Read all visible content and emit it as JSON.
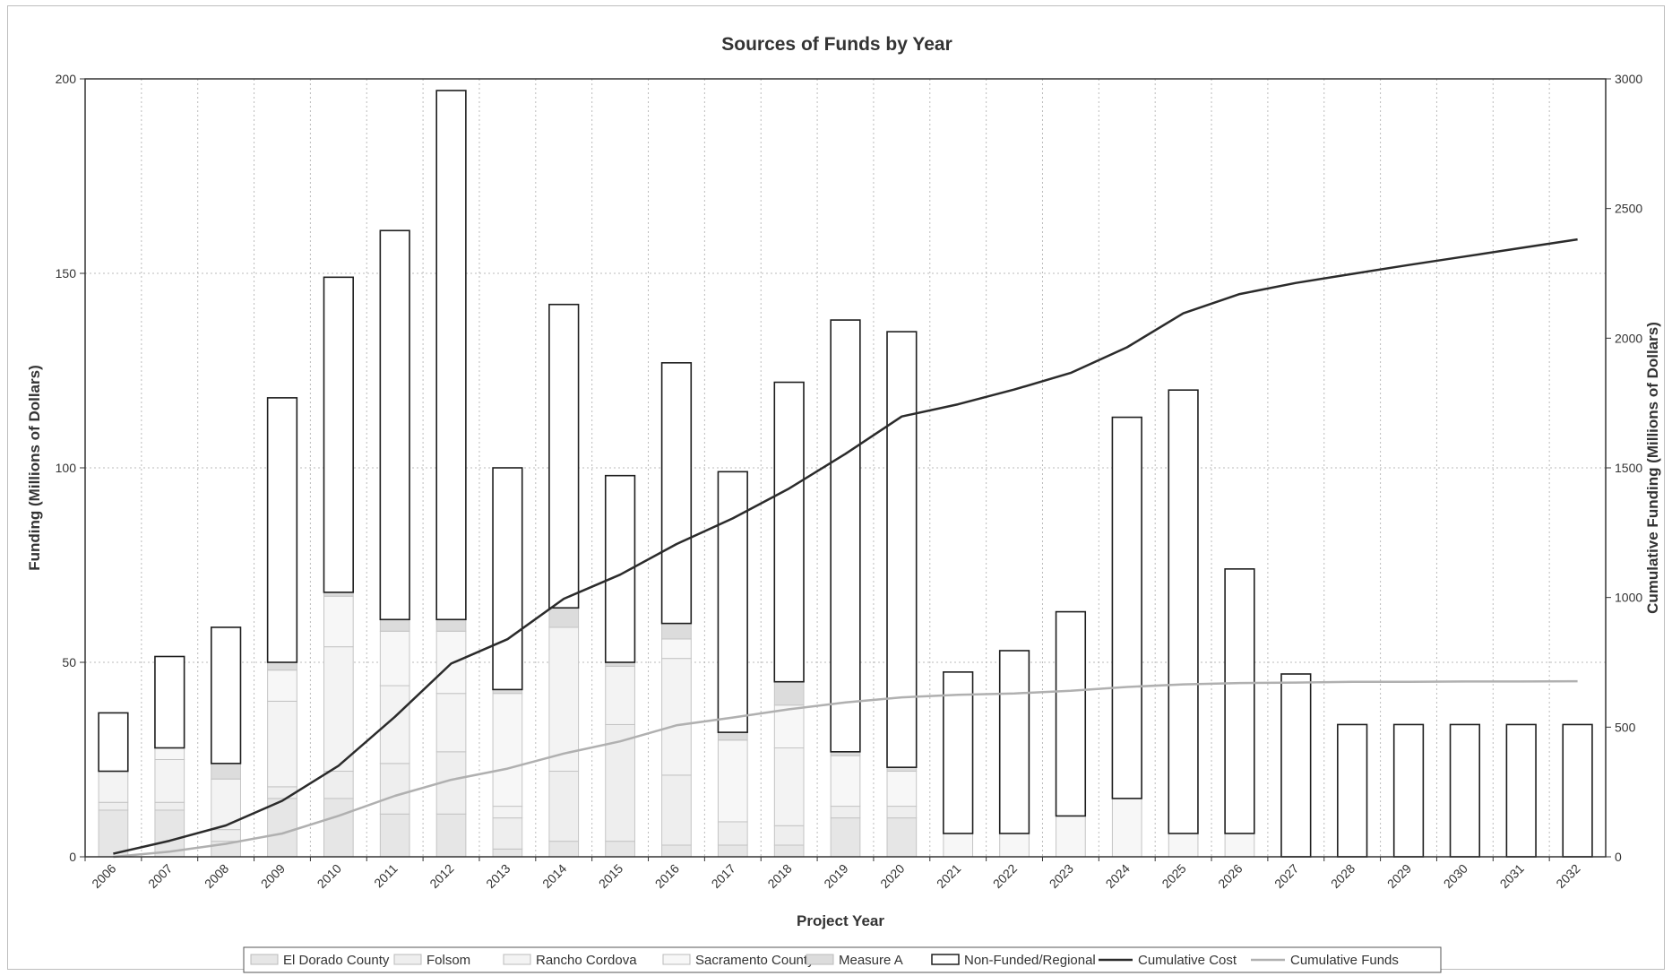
{
  "chart_data": {
    "type": "bar",
    "title": "Sources of Funds by Year",
    "xlabel": "Project Year",
    "ylabel": "Funding (Millions of Dollars)",
    "y2label": "Cumulative Funding (Millions of Dollars)",
    "ylim": [
      0,
      200
    ],
    "y2lim": [
      0,
      3000
    ],
    "yticks": [
      "0",
      "50",
      "100",
      "150",
      "200"
    ],
    "y2ticks": [
      "0",
      "500",
      "1000",
      "1500",
      "2000",
      "2500",
      "3000"
    ],
    "grid": true,
    "legend_position": "bottom",
    "stacked": true,
    "categories": [
      "2006",
      "2007",
      "2008",
      "2009",
      "2010",
      "2011",
      "2012",
      "2013",
      "2014",
      "2015",
      "2016",
      "2017",
      "2018",
      "2019",
      "2020",
      "2021",
      "2022",
      "2023",
      "2024",
      "2025",
      "2026",
      "2027",
      "2028",
      "2029",
      "2030",
      "2031",
      "2032"
    ],
    "series": [
      {
        "name": "El Dorado County",
        "kind": "bar",
        "color": "#e6e6e6",
        "values": [
          12,
          12,
          4,
          15,
          15,
          11,
          11,
          2,
          4,
          4,
          3,
          3,
          3,
          10,
          10,
          0,
          0,
          0,
          0,
          0,
          0,
          0,
          0,
          0,
          0,
          0,
          0
        ]
      },
      {
        "name": "Folsom",
        "kind": "bar",
        "color": "#eeeeee",
        "values": [
          2,
          2,
          3,
          3,
          7,
          13,
          16,
          8,
          18,
          30,
          18,
          6,
          5,
          3,
          3,
          0,
          0,
          0,
          0,
          0,
          0,
          0,
          0,
          0,
          0,
          0,
          0
        ]
      },
      {
        "name": "Rancho Cordova",
        "kind": "bar",
        "color": "#f3f3f3",
        "values": [
          8,
          11,
          13,
          22,
          32,
          20,
          15,
          3,
          37,
          15,
          30,
          0,
          20,
          0,
          0,
          0,
          0,
          0,
          0,
          0,
          0,
          0,
          0,
          0,
          0,
          0,
          0
        ]
      },
      {
        "name": "Sacramento County",
        "kind": "bar",
        "color": "#f7f7f7",
        "values": [
          0,
          3,
          0,
          8,
          13,
          14,
          16,
          29,
          0,
          0,
          5,
          21,
          11,
          13,
          9,
          6,
          6,
          10.5,
          15,
          6,
          6,
          0,
          0,
          0,
          0,
          0,
          0
        ]
      },
      {
        "name": "Measure A",
        "kind": "bar",
        "color": "#dcdcdc",
        "values": [
          0,
          0,
          4,
          2,
          1,
          3,
          3,
          1,
          5,
          1,
          4,
          2,
          6,
          1,
          1,
          0,
          0,
          0,
          0,
          0,
          0,
          0,
          0,
          0,
          0,
          0,
          0
        ]
      },
      {
        "name": "Non-Funded/Regional",
        "kind": "bar",
        "color": "#ffffff",
        "values": [
          15,
          23.5,
          35,
          68,
          81,
          100,
          136,
          57,
          78,
          48,
          67,
          67,
          77,
          111,
          112,
          41.5,
          47,
          52.5,
          98,
          114,
          68,
          47,
          34,
          34,
          34,
          34,
          34
        ]
      },
      {
        "name": "Cumulative Cost",
        "kind": "line",
        "axis": "right",
        "color": "#2b2b2b",
        "values": [
          12,
          62,
          121,
          216,
          351,
          540,
          745,
          839,
          995,
          1088,
          1206,
          1305,
          1420,
          1554,
          1698,
          1745,
          1802,
          1866,
          1965,
          2096,
          2170,
          2213,
          2248,
          2282,
          2315,
          2348,
          2381
        ]
      },
      {
        "name": "Cumulative Funds",
        "kind": "line",
        "axis": "right",
        "color": "#b0b0b0",
        "values": [
          0,
          20,
          50,
          90,
          158,
          235,
          297,
          340,
          398,
          445,
          507,
          537,
          569,
          595,
          615,
          625,
          630,
          640,
          655,
          665,
          670,
          672,
          675,
          675,
          676,
          676,
          677
        ]
      }
    ]
  }
}
